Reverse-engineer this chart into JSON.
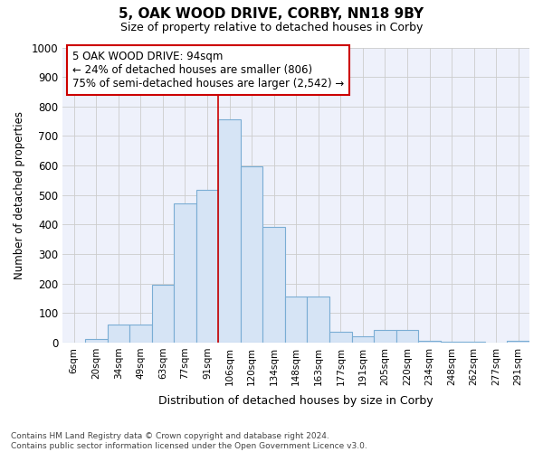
{
  "title": "5, OAK WOOD DRIVE, CORBY, NN18 9BY",
  "subtitle": "Size of property relative to detached houses in Corby",
  "xlabel": "Distribution of detached houses by size in Corby",
  "ylabel": "Number of detached properties",
  "categories": [
    "6sqm",
    "20sqm",
    "34sqm",
    "49sqm",
    "63sqm",
    "77sqm",
    "91sqm",
    "106sqm",
    "120sqm",
    "134sqm",
    "148sqm",
    "163sqm",
    "177sqm",
    "191sqm",
    "205sqm",
    "220sqm",
    "234sqm",
    "248sqm",
    "262sqm",
    "277sqm",
    "291sqm"
  ],
  "values": [
    0,
    13,
    62,
    62,
    197,
    470,
    517,
    757,
    597,
    392,
    155,
    157,
    36,
    22,
    42,
    42,
    5,
    2,
    2,
    1,
    5
  ],
  "bar_color": "#d6e4f5",
  "bar_edge_color": "#7aadd4",
  "annotation_line_index": 6.5,
  "annotation_box_text": "5 OAK WOOD DRIVE: 94sqm\n← 24% of detached houses are smaller (806)\n75% of semi-detached houses are larger (2,542) →",
  "red_line_color": "#cc0000",
  "box_edge_color": "#cc0000",
  "figure_background": "#ffffff",
  "plot_background": "#eef1fb",
  "grid_color": "#cccccc",
  "footer_line1": "Contains HM Land Registry data © Crown copyright and database right 2024.",
  "footer_line2": "Contains public sector information licensed under the Open Government Licence v3.0.",
  "ylim": [
    0,
    1000
  ],
  "yticks": [
    0,
    100,
    200,
    300,
    400,
    500,
    600,
    700,
    800,
    900,
    1000
  ]
}
